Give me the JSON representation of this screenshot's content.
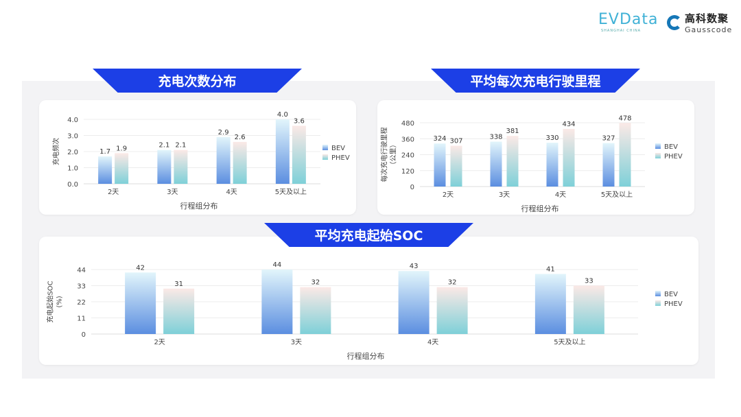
{
  "logos": {
    "evdata": "EVData",
    "evdata_sub": "SHANGHAI CHINA",
    "gauss_cn": "高科数聚",
    "gauss_en": "Gausscode"
  },
  "colors": {
    "banner": "#1c3fe6",
    "bev_top": "#e2f5fb",
    "bev_bottom": "#5b8ee0",
    "phev_top": "#fbe9e6",
    "phev_bottom": "#7ed0d8"
  },
  "chart_data": [
    {
      "type": "bar",
      "title": "充电次数分布",
      "xlabel": "行程组分布",
      "ylabel": [
        "充电频次"
      ],
      "categories": [
        "2天",
        "3天",
        "4天",
        "5天及以上"
      ],
      "ylim": [
        0,
        4
      ],
      "yticks": [
        "0.0",
        "1.0",
        "2.0",
        "3.0",
        "4.0"
      ],
      "legend": "right",
      "grid": true,
      "series": [
        {
          "name": "BEV",
          "values": [
            1.7,
            2.1,
            2.9,
            4.0
          ],
          "labels": [
            "1.7",
            "2.1",
            "2.9",
            "4.0"
          ]
        },
        {
          "name": "PHEV",
          "values": [
            1.9,
            2.1,
            2.6,
            3.6
          ],
          "labels": [
            "1.9",
            "2.1",
            "2.6",
            "3.6"
          ]
        }
      ]
    },
    {
      "type": "bar",
      "title": "平均每次充电行驶里程",
      "xlabel": "行程组分布",
      "ylabel": [
        "每次充电行驶里程",
        "（公里）"
      ],
      "categories": [
        "2天",
        "3天",
        "4天",
        "5天及以上"
      ],
      "ylim": [
        0,
        480
      ],
      "yticks": [
        "0",
        "120",
        "240",
        "360",
        "480"
      ],
      "legend": "right",
      "grid": true,
      "series": [
        {
          "name": "BEV",
          "values": [
            324,
            338,
            330,
            327
          ],
          "labels": [
            "324",
            "338",
            "330",
            "327"
          ]
        },
        {
          "name": "PHEV",
          "values": [
            307,
            381,
            434,
            478
          ],
          "labels": [
            "307",
            "381",
            "434",
            "478"
          ]
        }
      ]
    },
    {
      "type": "bar",
      "title": "平均充电起始SOC",
      "xlabel": "行程组分布",
      "ylabel": [
        "充电起始SOC",
        "(%)"
      ],
      "categories": [
        "2天",
        "3天",
        "4天",
        "5天及以上"
      ],
      "ylim": [
        0,
        44
      ],
      "yticks": [
        "0",
        "11",
        "22",
        "33",
        "44"
      ],
      "legend": "right",
      "grid": true,
      "series": [
        {
          "name": "BEV",
          "values": [
            42,
            44,
            43,
            41
          ],
          "labels": [
            "42",
            "44",
            "43",
            "41"
          ]
        },
        {
          "name": "PHEV",
          "values": [
            31,
            32,
            32,
            33
          ],
          "labels": [
            "31",
            "32",
            "32",
            "33"
          ]
        }
      ]
    }
  ]
}
